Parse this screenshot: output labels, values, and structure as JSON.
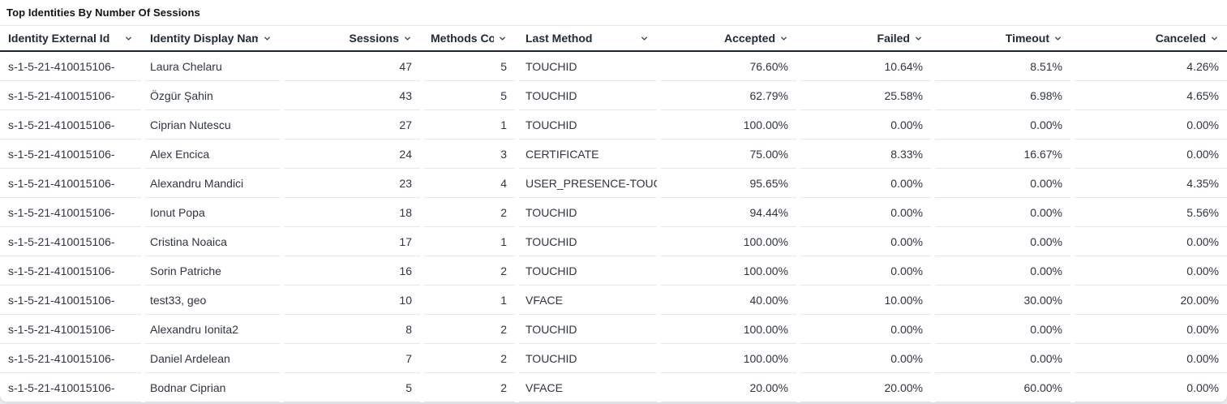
{
  "title": "Top Identities By Number Of Sessions",
  "table": {
    "columns": [
      {
        "id": "identity-external-id",
        "label": "Identity External Id",
        "align": "left"
      },
      {
        "id": "identity-display-name",
        "label": "Identity Display Name",
        "align": "left"
      },
      {
        "id": "sessions",
        "label": "Sessions",
        "align": "right"
      },
      {
        "id": "methods-count",
        "label": "Methods Count",
        "align": "right"
      },
      {
        "id": "last-method",
        "label": "Last Method",
        "align": "left"
      },
      {
        "id": "accepted",
        "label": "Accepted",
        "align": "right"
      },
      {
        "id": "failed",
        "label": "Failed",
        "align": "right"
      },
      {
        "id": "timeout",
        "label": "Timeout",
        "align": "right"
      },
      {
        "id": "canceled",
        "label": "Canceled",
        "align": "right"
      }
    ],
    "sort_icon": "chevron-down",
    "rows": [
      [
        "s-1-5-21-410015106-",
        "Laura Chelaru",
        "47",
        "5",
        "TOUCHID",
        "76.60%",
        "10.64%",
        "8.51%",
        "4.26%"
      ],
      [
        "s-1-5-21-410015106-",
        "Özgür Şahin",
        "43",
        "5",
        "TOUCHID",
        "62.79%",
        "25.58%",
        "6.98%",
        "4.65%"
      ],
      [
        "s-1-5-21-410015106-",
        "Ciprian Nutescu",
        "27",
        "1",
        "TOUCHID",
        "100.00%",
        "0.00%",
        "0.00%",
        "0.00%"
      ],
      [
        "s-1-5-21-410015106-",
        "Alex Encica",
        "24",
        "3",
        "CERTIFICATE",
        "75.00%",
        "8.33%",
        "16.67%",
        "0.00%"
      ],
      [
        "s-1-5-21-410015106-",
        "Alexandru Mandici",
        "23",
        "4",
        "USER_PRESENCE-TOUC",
        "95.65%",
        "0.00%",
        "0.00%",
        "4.35%"
      ],
      [
        "s-1-5-21-410015106-",
        "Ionut Popa",
        "18",
        "2",
        "TOUCHID",
        "94.44%",
        "0.00%",
        "0.00%",
        "5.56%"
      ],
      [
        "s-1-5-21-410015106-",
        "Cristina Noaica",
        "17",
        "1",
        "TOUCHID",
        "100.00%",
        "0.00%",
        "0.00%",
        "0.00%"
      ],
      [
        "s-1-5-21-410015106-",
        "Sorin Patriche",
        "16",
        "2",
        "TOUCHID",
        "100.00%",
        "0.00%",
        "0.00%",
        "0.00%"
      ],
      [
        "s-1-5-21-410015106-",
        "test33, geo",
        "10",
        "1",
        "VFACE",
        "40.00%",
        "10.00%",
        "30.00%",
        "20.00%"
      ],
      [
        "s-1-5-21-410015106-",
        "Alexandru Ionita2",
        "8",
        "2",
        "TOUCHID",
        "100.00%",
        "0.00%",
        "0.00%",
        "0.00%"
      ],
      [
        "s-1-5-21-410015106-",
        "Daniel Ardelean",
        "7",
        "2",
        "TOUCHID",
        "100.00%",
        "0.00%",
        "0.00%",
        "0.00%"
      ],
      [
        "s-1-5-21-410015106-",
        "Bodnar Ciprian",
        "5",
        "2",
        "VFACE",
        "20.00%",
        "20.00%",
        "60.00%",
        "0.00%"
      ]
    ]
  }
}
